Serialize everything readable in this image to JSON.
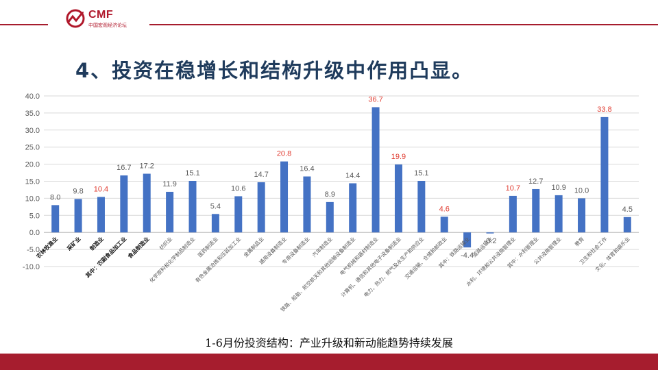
{
  "header": {
    "logo_text": "CMF",
    "logo_subtext": "中国宏观经济论坛",
    "slide_title": "4、投资在稳增长和结构升级中作用凸显。"
  },
  "caption": "1-6月份投资结构：产业升级和新动能趋势持续发展",
  "colors": {
    "bar": "#4472c4",
    "highlight_label": "#e03c31",
    "normal_label": "#595959",
    "accent": "#a61d2e",
    "title": "#1f3b5c"
  },
  "chart_data": {
    "type": "bar",
    "title": "",
    "xlabel": "",
    "ylabel": "",
    "ylim": [
      -10,
      40
    ],
    "yticks": [
      "40.0",
      "35.0",
      "30.0",
      "25.0",
      "20.0",
      "15.0",
      "10.0",
      "5.0",
      "0.0",
      "-5.0",
      "-10.0"
    ],
    "grid": true,
    "categories": [
      "农林牧渔业",
      "采矿业",
      "制造业",
      "其中：农副食品加工业",
      "食品制造业",
      "纺织业",
      "化学原料和化学制品制造业",
      "医药制造业",
      "有色金属冶炼和压延加工业",
      "金属制品业",
      "通用设备制造业",
      "专用设备制造业",
      "汽车制造业",
      "铁路、船舶、航空航天和其他运输设备制造业",
      "电气机械和器材制造业",
      "计算机、通信和其他电子设备制造业",
      "电力、热力、燃气及水生产和供应业",
      "交通运输、仓储和邮政业",
      "其中：铁路运输业",
      "道路运输业",
      "水利、环境和公共设施管理业",
      "其中：水利管理业",
      "公共设施管理业",
      "教育",
      "卫生和社会工作",
      "文化、体育和娱乐业"
    ],
    "values": [
      8.0,
      9.8,
      10.4,
      16.7,
      17.2,
      11.9,
      15.1,
      5.4,
      10.6,
      14.7,
      20.8,
      16.4,
      8.9,
      14.4,
      36.7,
      19.9,
      15.1,
      4.6,
      -4.4,
      -0.2,
      10.7,
      12.7,
      10.9,
      10.0,
      33.8,
      4.5
    ],
    "labels": [
      "8.0",
      "9.8",
      "10.4",
      "16.7",
      "17.2",
      "11.9",
      "15.1",
      "5.4",
      "10.6",
      "14.7",
      "20.8",
      "16.4",
      "8.9",
      "14.4",
      "36.7",
      "19.9",
      "15.1",
      "4.6",
      "-4.4",
      "-0.2",
      "10.7",
      "12.7",
      "10.9",
      "10.0",
      "33.8",
      "4.5"
    ],
    "highlighted": [
      false,
      false,
      true,
      false,
      false,
      false,
      false,
      false,
      false,
      false,
      true,
      false,
      false,
      false,
      true,
      true,
      false,
      true,
      false,
      false,
      true,
      false,
      false,
      false,
      true,
      false
    ],
    "bold_categories": [
      true,
      true,
      true,
      true,
      true,
      false,
      false,
      false,
      false,
      false,
      false,
      false,
      false,
      false,
      false,
      false,
      false,
      false,
      false,
      false,
      false,
      false,
      false,
      false,
      false,
      false
    ]
  }
}
